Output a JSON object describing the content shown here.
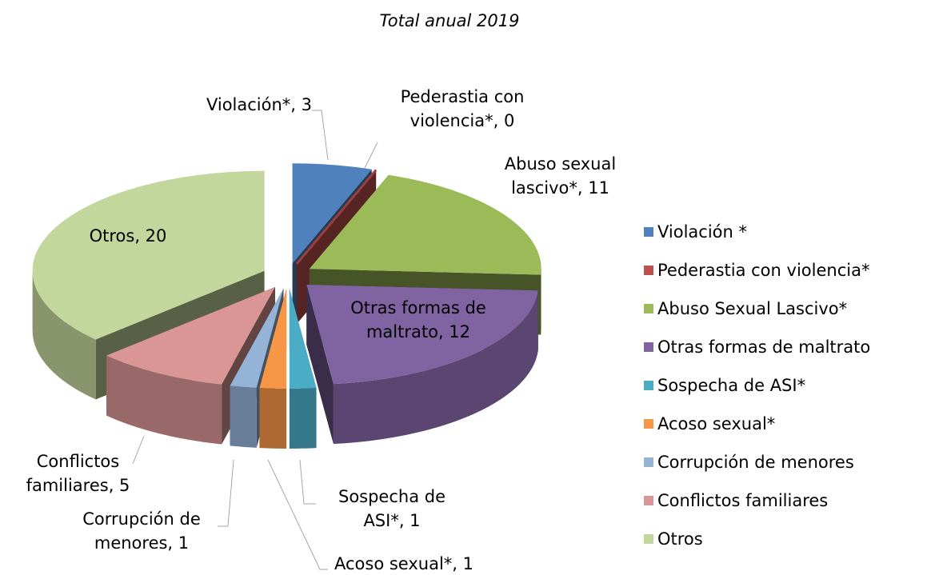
{
  "chart_data": {
    "type": "pie3d",
    "title": "Total anual 2019",
    "categories": [
      "Violación *",
      "Pederastia con violencia*",
      "Abuso Sexual Lascivo*",
      "Otras formas de maltrato",
      "Sospecha de ASI*",
      "Acoso sexual*",
      "Corrupción de menores",
      "Conflictos familiares",
      "Otros"
    ],
    "values": [
      3,
      0,
      11,
      12,
      1,
      1,
      1,
      5,
      20
    ],
    "value_labels": [
      "Violación*, 3",
      "Pederastia con violencia*, 0",
      "Abuso sexual lascivo*, 11",
      "Otras formas de maltrato, 12",
      "Sospecha de ASI*, 1",
      "Acoso sexual*, 1",
      "Corrupción de menores, 1",
      "Conflictos familiares, 5",
      "Otros, 20"
    ],
    "colors": [
      "#4f81bd",
      "#c0504d",
      "#9bbb59",
      "#8064a2",
      "#4bacc6",
      "#f79646",
      "#95b3d7",
      "#d99694",
      "#c3d69b"
    ],
    "legend": "right"
  }
}
